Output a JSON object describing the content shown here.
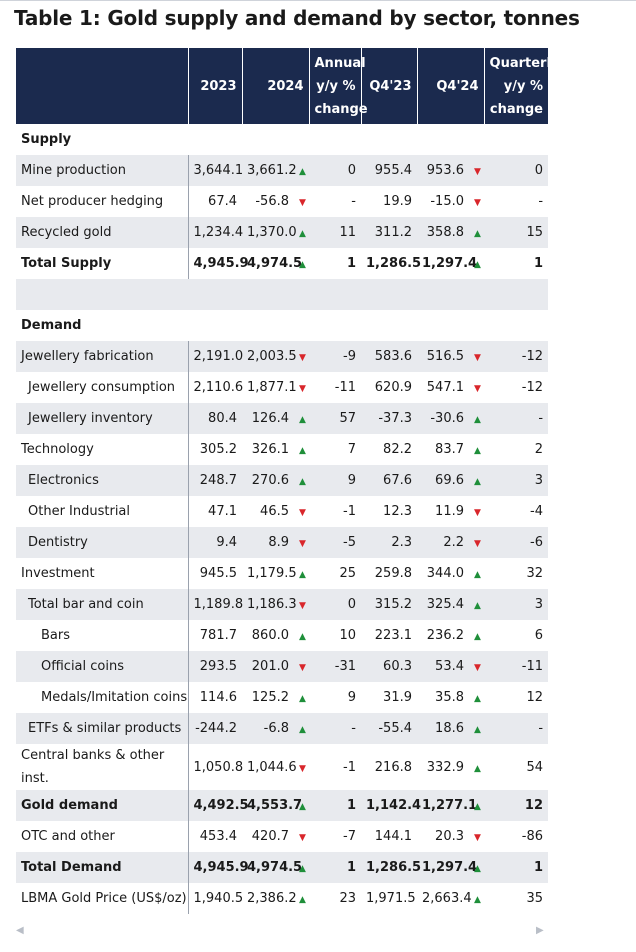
{
  "title": "Table 1: Gold supply and demand by sector, tonnes",
  "colors": {
    "header_bg": "#1b2a4e",
    "row_shade": "#e8eaee",
    "up": "#1f8f3a",
    "down": "#d9262b"
  },
  "header": {
    "y2023": "2023",
    "y2024": "2024",
    "annual": [
      "Annual",
      "y/y %",
      "change"
    ],
    "q4_23": "Q4'23",
    "q4_24": "Q4'24",
    "quarterly": [
      "Quarterly",
      "y/y %",
      "change"
    ]
  },
  "rows": [
    {
      "type": "section",
      "label": "Supply"
    },
    {
      "label": "Mine production",
      "indent": 0,
      "shade": true,
      "v2023": "3,644.1",
      "v2024": "3,661.2",
      "trend_y": "up",
      "annual": "0",
      "q423": "955.4",
      "q424": "953.6",
      "trend_q": "down",
      "quarterly": "0"
    },
    {
      "label": "Net producer hedging",
      "indent": 0,
      "shade": false,
      "v2023": "67.4",
      "v2024": "-56.8",
      "trend_y": "down",
      "annual": "-",
      "q423": "19.9",
      "q424": "-15.0",
      "trend_q": "down",
      "quarterly": "-"
    },
    {
      "label": "Recycled gold",
      "indent": 0,
      "shade": true,
      "v2023": "1,234.4",
      "v2024": "1,370.0",
      "trend_y": "up",
      "annual": "11",
      "q423": "311.2",
      "q424": "358.8",
      "trend_q": "up",
      "quarterly": "15"
    },
    {
      "label": "Total Supply",
      "indent": 0,
      "shade": false,
      "bold": true,
      "v2023": "4,945.9",
      "v2024": "4,974.5",
      "trend_y": "up",
      "annual": "1",
      "q423": "1,286.5",
      "q424": "1,297.4",
      "trend_q": "up",
      "quarterly": "1"
    },
    {
      "type": "spacer",
      "shade": true
    },
    {
      "type": "section",
      "label": "Demand"
    },
    {
      "label": "Jewellery fabrication",
      "indent": 0,
      "shade": true,
      "v2023": "2,191.0",
      "v2024": "2,003.5",
      "trend_y": "down",
      "annual": "-9",
      "q423": "583.6",
      "q424": "516.5",
      "trend_q": "down",
      "quarterly": "-12"
    },
    {
      "label": "Jewellery consumption",
      "indent": 1,
      "shade": false,
      "v2023": "2,110.6",
      "v2024": "1,877.1",
      "trend_y": "down",
      "annual": "-11",
      "q423": "620.9",
      "q424": "547.1",
      "trend_q": "down",
      "quarterly": "-12"
    },
    {
      "label": "Jewellery inventory",
      "indent": 1,
      "shade": true,
      "v2023": "80.4",
      "v2024": "126.4",
      "trend_y": "up",
      "annual": "57",
      "q423": "-37.3",
      "q424": "-30.6",
      "trend_q": "up",
      "quarterly": "-"
    },
    {
      "label": "Technology",
      "indent": 0,
      "shade": false,
      "v2023": "305.2",
      "v2024": "326.1",
      "trend_y": "up",
      "annual": "7",
      "q423": "82.2",
      "q424": "83.7",
      "trend_q": "up",
      "quarterly": "2"
    },
    {
      "label": "Electronics",
      "indent": 1,
      "shade": true,
      "v2023": "248.7",
      "v2024": "270.6",
      "trend_y": "up",
      "annual": "9",
      "q423": "67.6",
      "q424": "69.6",
      "trend_q": "up",
      "quarterly": "3"
    },
    {
      "label": "Other Industrial",
      "indent": 1,
      "shade": false,
      "v2023": "47.1",
      "v2024": "46.5",
      "trend_y": "down",
      "annual": "-1",
      "q423": "12.3",
      "q424": "11.9",
      "trend_q": "down",
      "quarterly": "-4"
    },
    {
      "label": "Dentistry",
      "indent": 1,
      "shade": true,
      "v2023": "9.4",
      "v2024": "8.9",
      "trend_y": "down",
      "annual": "-5",
      "q423": "2.3",
      "q424": "2.2",
      "trend_q": "down",
      "quarterly": "-6"
    },
    {
      "label": "Investment",
      "indent": 0,
      "shade": false,
      "v2023": "945.5",
      "v2024": "1,179.5",
      "trend_y": "up",
      "annual": "25",
      "q423": "259.8",
      "q424": "344.0",
      "trend_q": "up",
      "quarterly": "32"
    },
    {
      "label": "Total bar and coin",
      "indent": 1,
      "shade": true,
      "v2023": "1,189.8",
      "v2024": "1,186.3",
      "trend_y": "down",
      "annual": "0",
      "q423": "315.2",
      "q424": "325.4",
      "trend_q": "up",
      "quarterly": "3"
    },
    {
      "label": "Bars",
      "indent": 2,
      "shade": false,
      "v2023": "781.7",
      "v2024": "860.0",
      "trend_y": "up",
      "annual": "10",
      "q423": "223.1",
      "q424": "236.2",
      "trend_q": "up",
      "quarterly": "6"
    },
    {
      "label": "Official coins",
      "indent": 2,
      "shade": true,
      "v2023": "293.5",
      "v2024": "201.0",
      "trend_y": "down",
      "annual": "-31",
      "q423": "60.3",
      "q424": "53.4",
      "trend_q": "down",
      "quarterly": "-11"
    },
    {
      "label": "Medals/Imitation coins",
      "indent": 2,
      "shade": false,
      "v2023": "114.6",
      "v2024": "125.2",
      "trend_y": "up",
      "annual": "9",
      "q423": "31.9",
      "q424": "35.8",
      "trend_q": "up",
      "quarterly": "12"
    },
    {
      "label": "ETFs & similar products",
      "indent": 1,
      "shade": true,
      "v2023": "-244.2",
      "v2024": "-6.8",
      "trend_y": "up",
      "annual": "-",
      "q423": "-55.4",
      "q424": "18.6",
      "trend_q": "up",
      "quarterly": "-"
    },
    {
      "label": "Central banks & other inst.",
      "indent": 0,
      "shade": false,
      "tall": true,
      "v2023": "1,050.8",
      "v2024": "1,044.6",
      "trend_y": "down",
      "annual": "-1",
      "q423": "216.8",
      "q424": "332.9",
      "trend_q": "up",
      "quarterly": "54"
    },
    {
      "label": "Gold demand",
      "indent": 0,
      "shade": true,
      "bold": true,
      "v2023": "4,492.5",
      "v2024": "4,553.7",
      "trend_y": "up",
      "annual": "1",
      "q423": "1,142.4",
      "q424": "1,277.1",
      "trend_q": "up",
      "quarterly": "12"
    },
    {
      "label": "OTC and other",
      "indent": 0,
      "shade": false,
      "v2023": "453.4",
      "v2024": "420.7",
      "trend_y": "down",
      "annual": "-7",
      "q423": "144.1",
      "q424": "20.3",
      "trend_q": "down",
      "quarterly": "-86"
    },
    {
      "label": "Total Demand",
      "indent": 0,
      "shade": true,
      "bold": true,
      "v2023": "4,945.9",
      "v2024": "4,974.5",
      "trend_y": "up",
      "annual": "1",
      "q423": "1,286.5",
      "q424": "1,297.4",
      "trend_q": "up",
      "quarterly": "1"
    },
    {
      "label": "LBMA Gold Price (US$/oz)",
      "indent": 0,
      "shade": false,
      "v2023": "1,940.5",
      "v2024": "2,386.2",
      "trend_y": "up",
      "annual": "23",
      "q423": "1,971.5",
      "q424": "2,663.4",
      "trend_q": "up",
      "quarterly": "35"
    }
  ]
}
